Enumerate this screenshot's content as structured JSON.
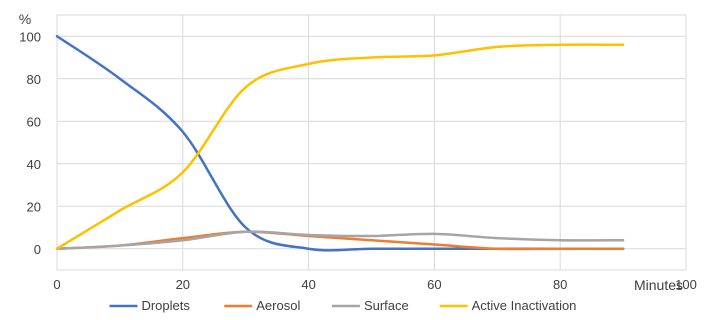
{
  "chart_data": {
    "type": "line",
    "ylabel": "%",
    "xlabel": "Minutes",
    "xlim": [
      0,
      100
    ],
    "ylim": [
      -10,
      110
    ],
    "xticks": [
      0,
      20,
      40,
      60,
      80,
      100
    ],
    "yticks": [
      0,
      20,
      40,
      60,
      80,
      100
    ],
    "grid": true,
    "legend_position": "bottom",
    "series": [
      {
        "name": "Droplets",
        "color": "#4472C4",
        "x": [
          0,
          10,
          20,
          30,
          40,
          50,
          60,
          70,
          80,
          90
        ],
        "y": [
          100,
          80,
          55,
          10,
          0,
          0,
          0,
          0,
          0,
          0
        ]
      },
      {
        "name": "Aerosol",
        "color": "#ED7D31",
        "x": [
          0,
          10,
          20,
          30,
          40,
          50,
          60,
          70,
          80,
          90
        ],
        "y": [
          0,
          1.5,
          5,
          8,
          6,
          4,
          2,
          0,
          0,
          0
        ]
      },
      {
        "name": "Surface",
        "color": "#A5A5A5",
        "x": [
          0,
          10,
          20,
          30,
          40,
          50,
          60,
          70,
          80,
          90
        ],
        "y": [
          0,
          1.5,
          4,
          8,
          6.5,
          6,
          7,
          5,
          4,
          4
        ]
      },
      {
        "name": "Active Inactivation",
        "color": "#FFC000",
        "x": [
          0,
          10,
          20,
          30,
          40,
          50,
          60,
          70,
          80,
          90
        ],
        "y": [
          0,
          18,
          36,
          76,
          87,
          90,
          91,
          95,
          96,
          96
        ]
      }
    ]
  }
}
